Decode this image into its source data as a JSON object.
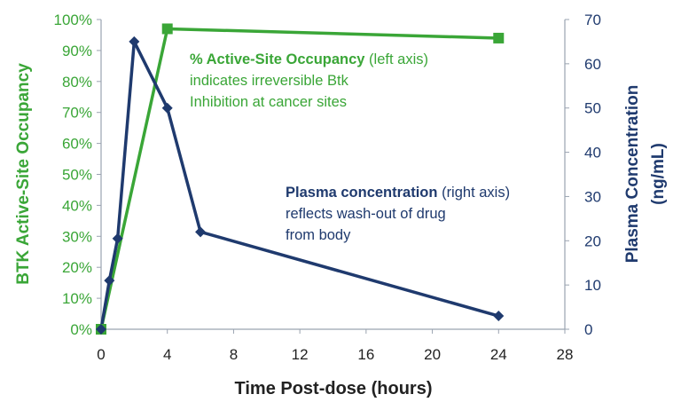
{
  "colors": {
    "occupancy": "#3aa637",
    "plasma": "#1f3a6e",
    "axis": "#9aa3b0"
  },
  "annotations": {
    "occupancy": {
      "bold": "% Active-Site Occupancy",
      "rest": " (left axis)",
      "line2": "indicates irreversible Btk",
      "line3": "Inhibition at cancer sites"
    },
    "plasma": {
      "bold": "Plasma concentration",
      "rest": " (right axis)",
      "line2": "reflects wash-out of drug",
      "line3": "from body"
    }
  },
  "chart_data": {
    "type": "line",
    "xlabel": "Time Post-dose (hours)",
    "ylabel": "BTK Active-Site Occupancy",
    "y2label_line1": "Plasma Concentration",
    "y2label_line2": "(ng/mL)",
    "xlim": [
      0,
      28
    ],
    "ylim": [
      0,
      100
    ],
    "y2lim": [
      0,
      70
    ],
    "xticks": [
      "0",
      "4",
      "8",
      "12",
      "16",
      "20",
      "24",
      "28"
    ],
    "yticks": [
      "0%",
      "10%",
      "20%",
      "30%",
      "40%",
      "50%",
      "60%",
      "70%",
      "80%",
      "90%",
      "100%"
    ],
    "y2ticks": [
      "0",
      "10",
      "20",
      "30",
      "40",
      "50",
      "60",
      "70"
    ],
    "grid": false,
    "series": [
      {
        "name": "% Active-Site Occupancy",
        "axis": "left",
        "marker": "square",
        "x": [
          0,
          4,
          24
        ],
        "y": [
          0,
          97,
          94
        ]
      },
      {
        "name": "Plasma concentration",
        "axis": "right",
        "marker": "diamond",
        "x": [
          0,
          0.5,
          1,
          2,
          4,
          6,
          24
        ],
        "y": [
          0,
          11,
          20.5,
          65,
          50,
          22,
          3
        ]
      }
    ]
  }
}
